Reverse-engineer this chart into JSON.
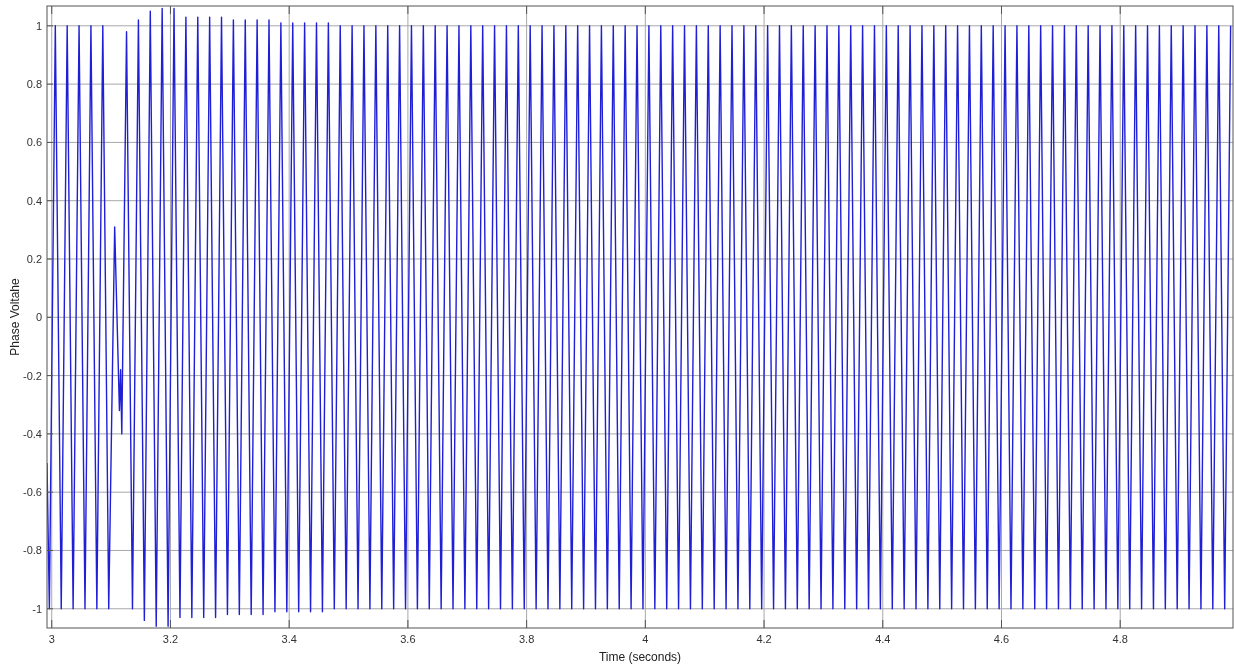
{
  "chart_data": {
    "type": "line",
    "xlabel": "Time (seconds)",
    "ylabel": "Phase Voltahe",
    "xlim": [
      2.992,
      4.99
    ],
    "ylim": [
      -1.066,
      1.068
    ],
    "xticks": [
      3,
      3.2,
      3.4,
      3.6,
      3.8,
      4,
      4.2,
      4.4,
      4.6,
      4.8
    ],
    "yticks": [
      -1,
      -0.8,
      -0.6,
      -0.4,
      -0.2,
      0,
      0.2,
      0.4,
      0.6,
      0.8,
      1
    ],
    "grid": true,
    "series": [
      {
        "color": "#1f1fd6",
        "x": [
          2.992,
          2.996,
          3.006,
          3.016,
          3.026,
          3.036,
          3.046,
          3.056,
          3.066,
          3.076,
          3.086,
          3.096,
          3.106,
          3.114,
          3.116,
          3.118,
          3.126,
          3.136,
          3.146,
          3.156,
          3.166,
          3.176,
          3.186,
          3.196,
          3.206,
          3.216,
          3.226,
          3.236,
          3.246,
          3.256,
          3.266,
          3.276,
          3.286,
          3.296,
          3.306,
          3.316,
          3.326,
          3.336,
          3.346,
          3.356,
          3.366,
          3.376,
          3.386,
          3.396,
          3.406,
          3.416,
          3.426,
          3.436,
          3.446,
          3.456,
          3.466,
          3.476,
          3.486,
          3.496,
          3.506,
          3.516,
          3.526,
          3.536,
          3.546,
          3.556,
          3.566,
          3.576,
          3.586,
          3.596,
          3.606,
          3.616,
          3.626,
          3.636,
          3.646,
          3.656,
          3.666,
          3.676,
          3.686,
          3.696,
          3.706,
          3.716,
          3.726,
          3.736,
          3.746,
          3.756,
          3.766,
          3.776,
          3.786,
          3.796,
          3.806,
          3.816,
          3.826,
          3.836,
          3.846,
          3.856,
          3.866,
          3.876,
          3.886,
          3.896,
          3.906,
          3.916,
          3.926,
          3.936,
          3.946,
          3.956,
          3.966,
          3.976,
          3.986,
          3.996,
          4.006,
          4.016,
          4.026,
          4.036,
          4.046,
          4.056,
          4.066,
          4.076,
          4.086,
          4.096,
          4.106,
          4.116,
          4.126,
          4.136,
          4.146,
          4.156,
          4.166,
          4.176,
          4.186,
          4.196,
          4.206,
          4.216,
          4.226,
          4.236,
          4.246,
          4.256,
          4.266,
          4.276,
          4.286,
          4.296,
          4.306,
          4.316,
          4.326,
          4.336,
          4.346,
          4.356,
          4.366,
          4.376,
          4.386,
          4.396,
          4.406,
          4.416,
          4.426,
          4.436,
          4.446,
          4.456,
          4.466,
          4.476,
          4.486,
          4.496,
          4.506,
          4.516,
          4.526,
          4.536,
          4.546,
          4.556,
          4.566,
          4.576,
          4.586,
          4.596,
          4.606,
          4.616,
          4.626,
          4.636,
          4.646,
          4.656,
          4.666,
          4.676,
          4.686,
          4.696,
          4.706,
          4.716,
          4.726,
          4.736,
          4.746,
          4.756,
          4.766,
          4.776,
          4.786,
          4.796,
          4.806,
          4.816,
          4.826,
          4.836,
          4.846,
          4.856,
          4.866,
          4.876,
          4.886,
          4.896,
          4.906,
          4.916,
          4.926,
          4.936,
          4.946,
          4.956,
          4.966,
          4.976,
          4.986
        ],
        "values": [
          -0.5,
          -1,
          1,
          -1,
          1,
          -1,
          1,
          -1,
          1,
          -1,
          1,
          -1,
          0.31,
          -0.32,
          -0.18,
          -0.4,
          0.98,
          -1,
          1.02,
          -1.04,
          1.05,
          -1.06,
          1.06,
          -1.06,
          1.06,
          -1.03,
          1.03,
          -1.03,
          1.03,
          -1.03,
          1.03,
          -1.03,
          1.03,
          -1.02,
          1.02,
          -1.02,
          1.02,
          -1.02,
          1.02,
          -1.02,
          1.02,
          -1.01,
          1.01,
          -1.01,
          1.01,
          -1.01,
          1.01,
          -1.01,
          1.01,
          -1.01,
          1.01,
          -1,
          1,
          -1,
          1,
          -1,
          1,
          -1,
          1,
          -1,
          1,
          -1,
          1,
          -1,
          1,
          -1,
          1,
          -1,
          1,
          -1,
          1,
          -1,
          1,
          -1,
          1,
          -1,
          1,
          -1,
          1,
          -1,
          1,
          -1,
          1,
          -1,
          1,
          -1,
          1,
          -1,
          1,
          -1,
          1,
          -1,
          1,
          -1,
          1,
          -1,
          1,
          -1,
          1,
          -1,
          1,
          -1,
          1,
          -1,
          1,
          -1,
          1,
          -1,
          1,
          -1,
          1,
          -1,
          1,
          -1,
          1,
          -1,
          1,
          -1,
          1,
          -1,
          1,
          -1,
          1,
          -1,
          1,
          -1,
          1,
          -1,
          1,
          -1,
          1,
          -1,
          1,
          -1,
          1,
          -1,
          1,
          -1,
          1,
          -1,
          1,
          -1,
          1,
          -1,
          1,
          -1,
          1,
          -1,
          1,
          -1,
          1,
          -1,
          1,
          -1,
          1,
          -1,
          1,
          -1,
          1,
          -1,
          1,
          -1,
          1,
          -1,
          1,
          -1,
          1,
          -1,
          1,
          -1,
          1,
          -1,
          1,
          -1,
          1,
          -1,
          1,
          -1,
          1,
          -1,
          1,
          -1,
          1,
          -1,
          1,
          -1,
          1,
          -1,
          1,
          -1,
          1,
          -1,
          1,
          -1,
          1,
          -1,
          1,
          -1,
          1,
          -1,
          1,
          -1,
          1
        ]
      }
    ]
  }
}
